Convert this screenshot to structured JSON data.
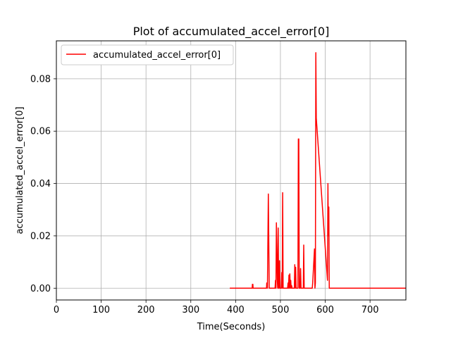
{
  "chart_data": {
    "type": "line",
    "title": "Plot of accumulated_accel_error[0]",
    "xlabel": "Time(Seconds)",
    "ylabel": "accumulated_accel_error[0]",
    "xlim": [
      0,
      780
    ],
    "ylim": [
      -0.0045,
      0.0945
    ],
    "xticks": [
      0,
      100,
      200,
      300,
      400,
      500,
      600,
      700
    ],
    "yticks": [
      0.0,
      0.02,
      0.04,
      0.06,
      0.08
    ],
    "ytick_labels": [
      "0.00",
      "0.02",
      "0.04",
      "0.06",
      "0.08"
    ],
    "grid": true,
    "legend_position": "top-left",
    "series": [
      {
        "name": "accumulated_accel_error[0]",
        "color": "#ff0000",
        "x": [
          387,
          437,
          437.5,
          438.5,
          439,
          469,
          469.5,
          470.5,
          471,
          473,
          474,
          475,
          476,
          477,
          478,
          488,
          489,
          490,
          491,
          492,
          493,
          494,
          495,
          496,
          497,
          498,
          499,
          500,
          502,
          503,
          504,
          505,
          506,
          507,
          516,
          517,
          518,
          519,
          520,
          521,
          522,
          523,
          524,
          525,
          526,
          527,
          528,
          529,
          531,
          532,
          533,
          534,
          535,
          536,
          537,
          538,
          539,
          540,
          541,
          542,
          543,
          544,
          545,
          546,
          547,
          548,
          549,
          550,
          551,
          552,
          553,
          555,
          568,
          569,
          570,
          571,
          572,
          576,
          577,
          578,
          579,
          580,
          605,
          606,
          607,
          608,
          609,
          610,
          611,
          615,
          616,
          617,
          618,
          619,
          644,
          645,
          646,
          647,
          648,
          733,
          734,
          735,
          736,
          737,
          738,
          739,
          740,
          741,
          742,
          743,
          744,
          745,
          746,
          747,
          748,
          749,
          750,
          751,
          752,
          753,
          754,
          755,
          756,
          757,
          780
        ],
        "y": [
          0,
          0,
          0.0015,
          0.0015,
          0,
          0,
          0.002,
          0.002,
          0,
          0.036,
          0.018,
          0,
          0,
          0,
          0,
          0,
          0.003,
          0,
          0.025,
          0.015,
          0.003,
          0,
          0.023,
          0,
          0,
          0.0105,
          0,
          0,
          0,
          0.006,
          0,
          0.0365,
          0,
          0,
          0,
          0.002,
          0,
          0.005,
          0,
          0.0055,
          0,
          0.003,
          0,
          0.001,
          0,
          0,
          0,
          0,
          0,
          0.009,
          0,
          0.008,
          0,
          0,
          0,
          0,
          0,
          0.057,
          0.057,
          0,
          0,
          0,
          0.0075,
          0,
          0,
          0,
          0,
          0,
          0,
          0.0165,
          0,
          0,
          0,
          0,
          0,
          0,
          0.002,
          0.015,
          0,
          0.002,
          0.09,
          0.065,
          0.003,
          0.04,
          0.02,
          0.031,
          0,
          0,
          0,
          0,
          0,
          0,
          0,
          0,
          0,
          0,
          0,
          0,
          0,
          0,
          0,
          0,
          0,
          0,
          0,
          0,
          0,
          0,
          0,
          0,
          0,
          0,
          0,
          0,
          0,
          0,
          0,
          0,
          0,
          0,
          0,
          0,
          0,
          0,
          0
        ]
      }
    ]
  }
}
